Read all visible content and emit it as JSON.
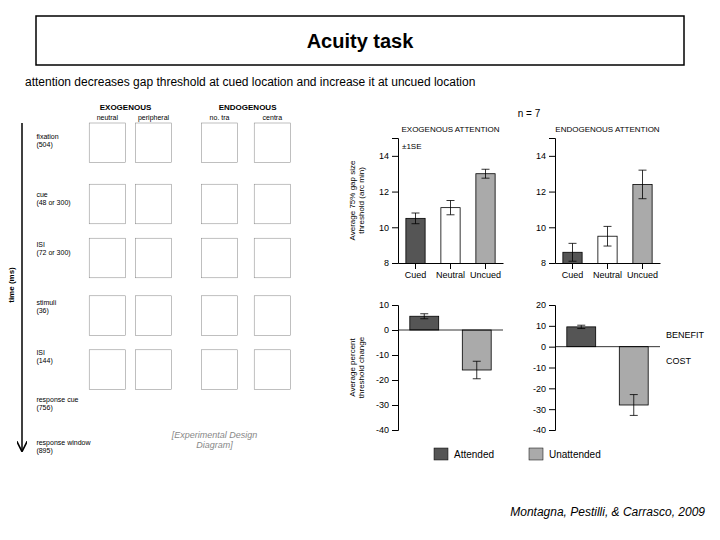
{
  "title": "Acuity task",
  "subtitle": "attention decreases gap threshold at cued location and increase it at uncued location",
  "annotations": [
    "n = 7",
    "Montagna, Pestilli, & Carrasco, 2009",
    "[Experimental Design\nDiagram]",
    "time (ms)",
    "fixation\n(504)",
    "cue\n(48 or 300)",
    "ISI\n(72 or 300)",
    "stimuli\n(36)",
    "ISI\n(144)",
    "response cue\n(756)",
    "response window\n(895)",
    "EXOGENOUS",
    "ENDOGENOUS",
    "neutral",
    "peripheral",
    "no. tra",
    "centra"
  ],
  "chart_data": [
    {
      "type": "bar",
      "title": "EXOGENOUS ATTENTION",
      "categories": [
        "Cued",
        "Neutral",
        "Uncued"
      ],
      "values": [
        10.5,
        11.1,
        13.0
      ],
      "errors": [
        0.3,
        0.4,
        0.25
      ],
      "colors": [
        "#555555",
        "#ffffff",
        "#aaaaaa"
      ],
      "ylim": [
        8,
        15
      ],
      "yticks": [
        8,
        10,
        12,
        14
      ],
      "ylabel": "Average 75% gap size\nthreshold (arc min)",
      "annotations": [
        "±1SE"
      ]
    },
    {
      "type": "bar",
      "title": "ENDOGENOUS ATTENTION",
      "categories": [
        "Cued",
        "Neutral",
        "Uncued"
      ],
      "values": [
        8.6,
        9.5,
        12.4
      ],
      "errors": [
        0.5,
        0.55,
        0.8
      ],
      "colors": [
        "#555555",
        "#ffffff",
        "#aaaaaa"
      ],
      "ylim": [
        8,
        15
      ],
      "yticks": [
        8,
        10,
        12,
        14
      ]
    },
    {
      "type": "bar",
      "categories": [
        "Attended",
        "Unattended"
      ],
      "values": [
        5.5,
        -16.0
      ],
      "errors": [
        1.0,
        3.5
      ],
      "colors": [
        "#555555",
        "#aaaaaa"
      ],
      "ylim": [
        -40,
        10
      ],
      "yticks": [
        -40,
        -30,
        -20,
        -10,
        0,
        10
      ],
      "ylabel": "Average percent\nthreshold change",
      "tick_labels": "y",
      "legend": "bottom"
    },
    {
      "type": "bar",
      "categories": [
        "Attended",
        "Unattended"
      ],
      "values": [
        9.5,
        -28.0
      ],
      "errors": [
        0.8,
        5.0
      ],
      "colors": [
        "#555555",
        "#aaaaaa"
      ],
      "ylim": [
        -40,
        20
      ],
      "yticks": [
        -40,
        -30,
        -20,
        -10,
        0,
        10,
        20
      ],
      "tick_labels": "y",
      "annotations": [
        "BENEFIT",
        "COST"
      ]
    }
  ]
}
